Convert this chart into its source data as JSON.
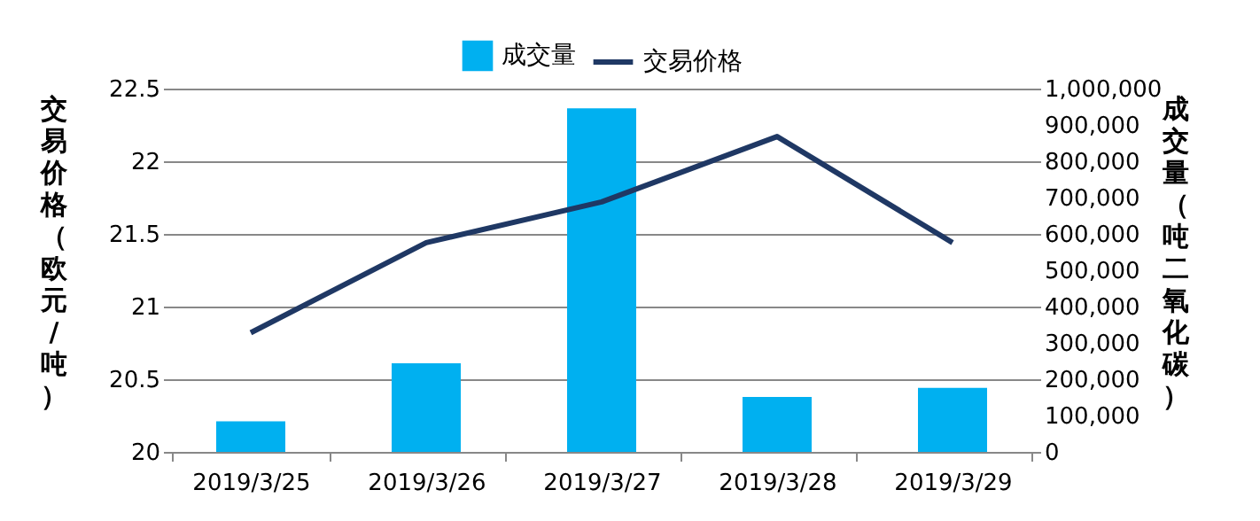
{
  "chart_data": {
    "type": "bar",
    "categories": [
      "2019/3/25",
      "2019/3/26",
      "2019/3/27",
      "2019/3/28",
      "2019/3/29"
    ],
    "series": [
      {
        "name": "成交量",
        "axis": "y2",
        "color": "#00b0f0",
        "values": [
          84000,
          244000,
          946000,
          151000,
          176000
        ]
      },
      {
        "name": "交易价格",
        "type": "line",
        "color": "#1f3864",
        "values": [
          20.82,
          21.44,
          21.72,
          22.17,
          21.44
        ]
      }
    ],
    "ylabel": "交易价格（欧元/吨）",
    "y2label": "成交量（吨二氧化碳）",
    "ylim": [
      20,
      22.5
    ],
    "yticks": [
      20,
      20.5,
      21,
      21.5,
      22,
      22.5
    ],
    "y2lim": [
      0,
      1000000
    ],
    "y2ticks": [
      0,
      {
        "value": 100000,
        "label": "100,000"
      },
      {
        "value": 200000,
        "label": "200,000"
      },
      {
        "value": 300000,
        "label": "300,000"
      },
      {
        "value": 400000,
        "label": "400,000"
      },
      {
        "value": 500000,
        "label": "500,000"
      },
      {
        "value": 600000,
        "label": "600,000"
      },
      {
        "value": 700000,
        "label": "700,000"
      },
      {
        "value": 800000,
        "label": "800,000"
      },
      {
        "value": 900000,
        "label": "900,000"
      },
      {
        "value": 1000000,
        "label": "1,000,000"
      }
    ],
    "grid": "y",
    "legend": "top"
  }
}
